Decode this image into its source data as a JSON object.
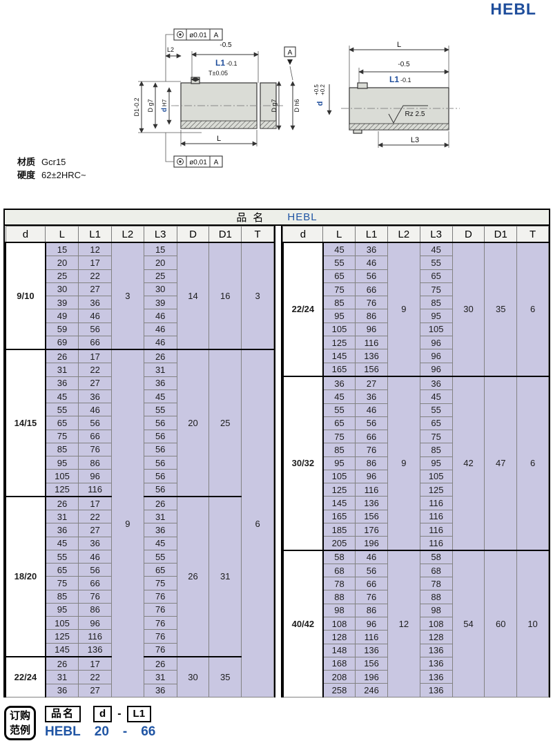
{
  "title": "HEBL",
  "notes": {
    "material_label": "材质",
    "material_value": "Gcr15",
    "hardness_label": "硬度",
    "hardness_value": "62±2HRC~"
  },
  "drawings": {
    "left": {
      "gdt_top_value": "ø0.01",
      "gdt_top_datum": "A",
      "gdt_bottom_value": "ø0,01",
      "gdt_bottom_datum": "A",
      "dim_l2": "L2",
      "dim_neg05": "-0.5",
      "dim_l1": "L1",
      "dim_l1_tol": "-0.1",
      "dim_t": "T±0.05",
      "dim_d1": "D1-0.2",
      "dim_d_g7": "D g7",
      "dim_d_bore": "d",
      "dim_d_bore_fit": "H7",
      "dim_l": "L",
      "dim_d_g7_right": "D g7",
      "dim_d_h6": "D h6",
      "datum": "A"
    },
    "right": {
      "dim_l": "L",
      "dim_neg05": "-0.5",
      "dim_l1": "L1",
      "dim_l1_tol": "-0.1",
      "dim_d": "d",
      "dim_d_tol_up": "+0.5",
      "dim_d_tol_lo": "+0.2",
      "surface": "Rz 2.5",
      "dim_l3": "L3"
    }
  },
  "table": {
    "product_label": "品名",
    "product_value": "HEBL",
    "columns": [
      "d",
      "L",
      "L1",
      "L2",
      "L3",
      "D",
      "D1",
      "T"
    ],
    "left": {
      "widths": [
        58,
        48,
        48,
        47,
        48,
        47,
        47,
        47
      ],
      "rows": [
        [
          15,
          12,
          15
        ],
        [
          20,
          17,
          20
        ],
        [
          25,
          22,
          25
        ],
        [
          30,
          27,
          30
        ],
        [
          39,
          36,
          39
        ],
        [
          49,
          46,
          46
        ],
        [
          59,
          56,
          46
        ],
        [
          69,
          66,
          46
        ],
        [
          26,
          17,
          26
        ],
        [
          31,
          22,
          31
        ],
        [
          36,
          27,
          36
        ],
        [
          45,
          36,
          45
        ],
        [
          55,
          46,
          55
        ],
        [
          65,
          56,
          56
        ],
        [
          75,
          66,
          56
        ],
        [
          85,
          76,
          56
        ],
        [
          95,
          86,
          56
        ],
        [
          105,
          96,
          56
        ],
        [
          125,
          116,
          56
        ],
        [
          26,
          17,
          26
        ],
        [
          31,
          22,
          31
        ],
        [
          36,
          27,
          36
        ],
        [
          45,
          36,
          45
        ],
        [
          55,
          46,
          55
        ],
        [
          65,
          56,
          65
        ],
        [
          75,
          66,
          75
        ],
        [
          85,
          76,
          76
        ],
        [
          95,
          86,
          76
        ],
        [
          105,
          96,
          76
        ],
        [
          125,
          116,
          76
        ],
        [
          145,
          136,
          76
        ],
        [
          26,
          17,
          26
        ],
        [
          31,
          22,
          31
        ],
        [
          36,
          27,
          36
        ]
      ],
      "merges": {
        "d": [
          {
            "span": 8,
            "v": "9/10"
          },
          {
            "span": 11,
            "v": "14/15"
          },
          {
            "span": 12,
            "v": "18/20"
          },
          {
            "span": 3,
            "v": "22/24"
          }
        ],
        "L2": [
          {
            "span": 8,
            "v": "3"
          },
          {
            "span": 26,
            "v": "9"
          }
        ],
        "D": [
          {
            "span": 8,
            "v": "14"
          },
          {
            "span": 11,
            "v": "20"
          },
          {
            "span": 12,
            "v": "26"
          },
          {
            "span": 3,
            "v": "30"
          }
        ],
        "D1": [
          {
            "span": 8,
            "v": "16"
          },
          {
            "span": 11,
            "v": "25"
          },
          {
            "span": 12,
            "v": "31"
          },
          {
            "span": 3,
            "v": "35"
          }
        ],
        "T": [
          {
            "span": 8,
            "v": "3"
          },
          {
            "span": 26,
            "v": "6"
          }
        ]
      }
    },
    "right": {
      "widths": [
        58,
        47,
        47,
        47,
        47,
        47,
        47,
        46
      ],
      "rows": [
        [
          45,
          36,
          45
        ],
        [
          55,
          46,
          55
        ],
        [
          65,
          56,
          65
        ],
        [
          75,
          66,
          75
        ],
        [
          85,
          76,
          85
        ],
        [
          95,
          86,
          95
        ],
        [
          105,
          96,
          105
        ],
        [
          125,
          116,
          96
        ],
        [
          145,
          136,
          96
        ],
        [
          165,
          156,
          96
        ],
        [
          36,
          27,
          36
        ],
        [
          45,
          36,
          45
        ],
        [
          55,
          46,
          55
        ],
        [
          65,
          56,
          65
        ],
        [
          75,
          66,
          75
        ],
        [
          85,
          76,
          85
        ],
        [
          95,
          86,
          95
        ],
        [
          105,
          96,
          105
        ],
        [
          125,
          116,
          125
        ],
        [
          145,
          136,
          116
        ],
        [
          165,
          156,
          116
        ],
        [
          185,
          176,
          116
        ],
        [
          205,
          196,
          116
        ],
        [
          58,
          46,
          58
        ],
        [
          68,
          56,
          68
        ],
        [
          78,
          66,
          78
        ],
        [
          88,
          76,
          88
        ],
        [
          98,
          86,
          98
        ],
        [
          108,
          96,
          108
        ],
        [
          128,
          116,
          128
        ],
        [
          148,
          136,
          136
        ],
        [
          168,
          156,
          136
        ],
        [
          208,
          196,
          136
        ],
        [
          258,
          246,
          136
        ]
      ],
      "merges": {
        "d": [
          {
            "span": 10,
            "v": "22/24"
          },
          {
            "span": 13,
            "v": "30/32"
          },
          {
            "span": 11,
            "v": "40/42"
          }
        ],
        "L2": [
          {
            "span": 10,
            "v": "9"
          },
          {
            "span": 13,
            "v": "9"
          },
          {
            "span": 11,
            "v": "12"
          }
        ],
        "D": [
          {
            "span": 10,
            "v": "30"
          },
          {
            "span": 13,
            "v": "42"
          },
          {
            "span": 11,
            "v": "54"
          }
        ],
        "D1": [
          {
            "span": 10,
            "v": "35"
          },
          {
            "span": 13,
            "v": "47"
          },
          {
            "span": 11,
            "v": "60"
          }
        ],
        "T": [
          {
            "span": 10,
            "v": "6"
          },
          {
            "span": 13,
            "v": "6"
          },
          {
            "span": 11,
            "v": "10"
          }
        ]
      }
    }
  },
  "order_example": {
    "box_line1": "订购",
    "box_line2": "范例",
    "name_label": "品名",
    "d_label": "d",
    "dash": "-",
    "l1_label": "L1",
    "example_name": "HEBL",
    "example_d": "20",
    "example_dash": "-",
    "example_l1": "66"
  }
}
